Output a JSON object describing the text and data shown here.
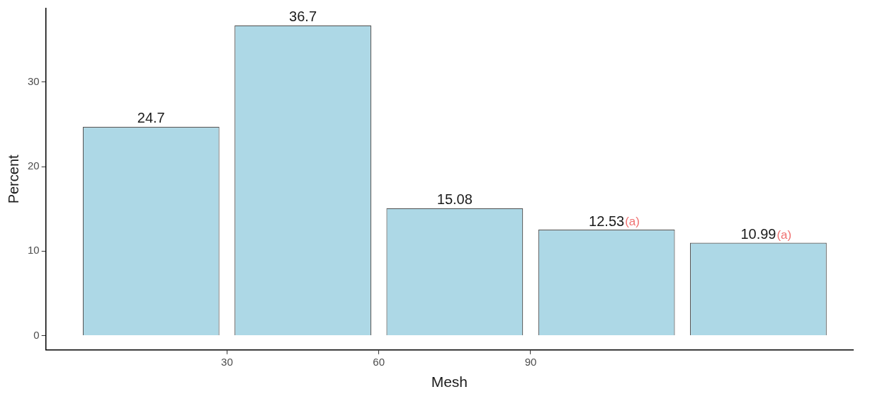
{
  "chart_data": {
    "type": "bar",
    "xlabel": "Mesh",
    "ylabel": "Percent",
    "x": [
      15,
      45,
      75,
      105,
      135
    ],
    "values": [
      24.7,
      36.7,
      15.08,
      12.53,
      10.99
    ],
    "color": "#add8e6",
    "value_labels": [
      "24.7",
      "36.7",
      "15.08",
      "12.53",
      "10.99"
    ],
    "annotations": [
      {
        "text": "(a)",
        "x": 105,
        "y": 12.53
      },
      {
        "text": "(a)",
        "x": 135,
        "y": 10.99
      }
    ],
    "xlim": [
      -5.8,
      153.7
    ],
    "xticks": [
      30,
      60,
      90
    ],
    "ylim": [
      -1.7,
      38.7
    ],
    "yticks": [
      0,
      10,
      20,
      30
    ],
    "legend": false
  }
}
